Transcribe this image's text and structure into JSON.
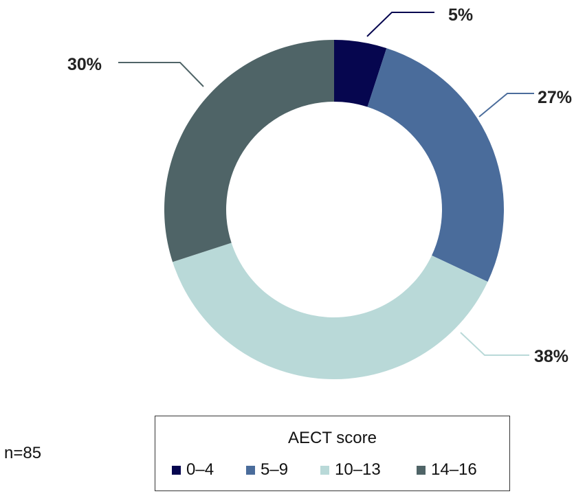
{
  "chart_data": {
    "type": "pie",
    "variant": "donut",
    "slices": [
      {
        "category": "0–4",
        "value": 5,
        "label": "5%",
        "color": "#06064f"
      },
      {
        "category": "5–9",
        "value": 27,
        "label": "27%",
        "color": "#4a6c9b"
      },
      {
        "category": "10–13",
        "value": 38,
        "label": "38%",
        "color": "#b9d9d8"
      },
      {
        "category": "14–16",
        "value": 30,
        "label": "30%",
        "color": "#4f6467"
      }
    ],
    "legend": {
      "title": "AECT score",
      "placement": "bottom"
    },
    "note": "n=85"
  }
}
